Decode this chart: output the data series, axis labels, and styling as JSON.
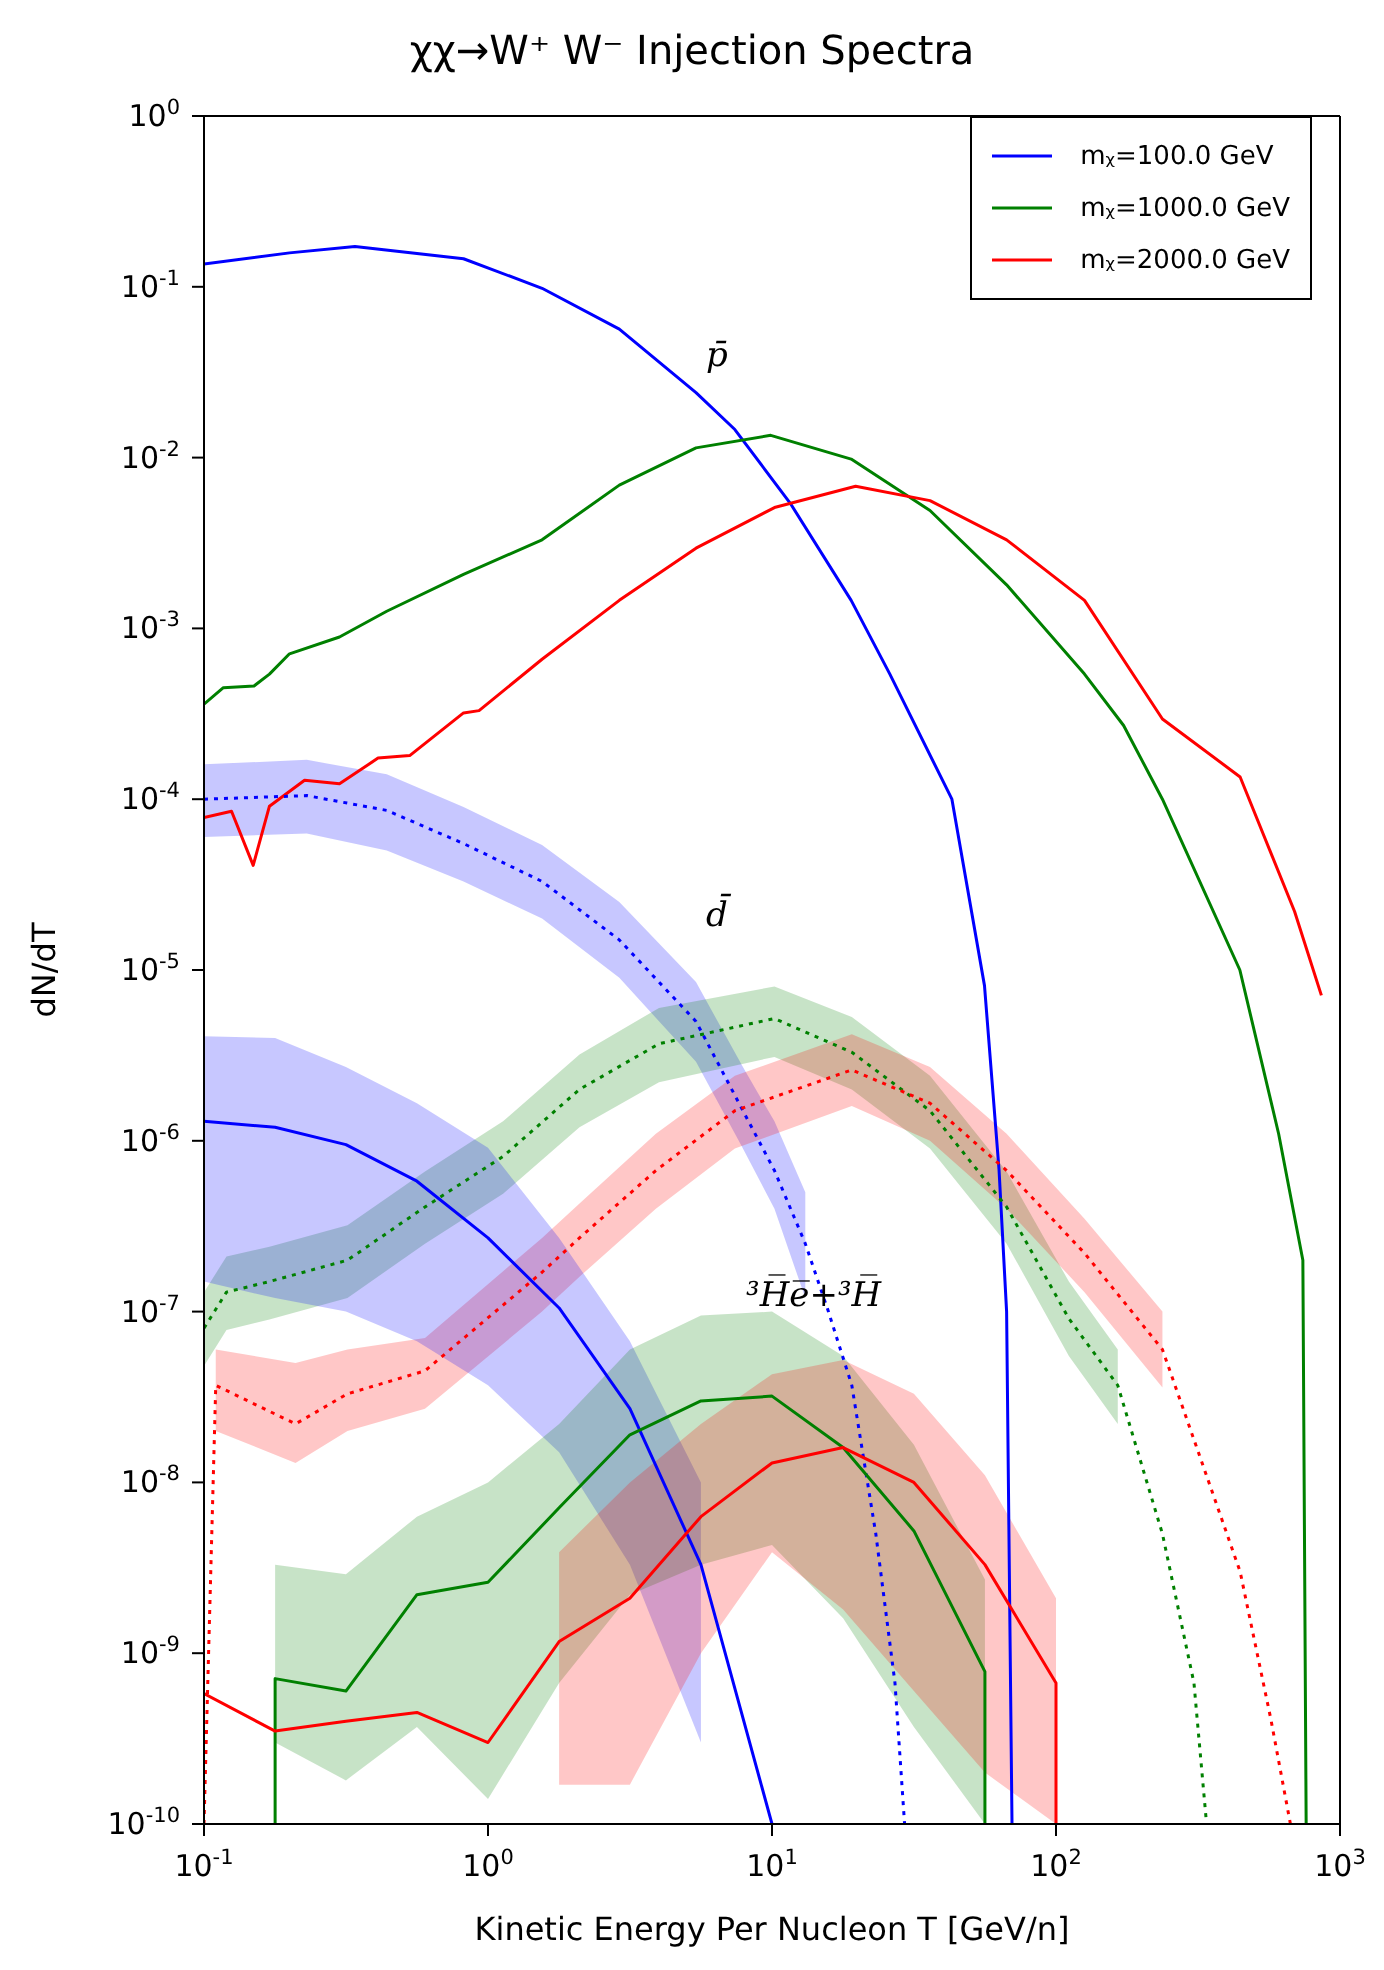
{
  "chart_data": {
    "type": "line",
    "title": "χχ→W⁺ W⁻  Injection Spectra",
    "xlabel": "Kinetic Energy Per Nucleon T [GeV/n]",
    "ylabel": "dN/dT",
    "log": "xy",
    "legend": "top right",
    "xlim": [
      0.1,
      1000
    ],
    "xticks": [
      {
        "value": 0.1,
        "label": "10$^{-1}$"
      },
      {
        "value": 1,
        "label": "10$^{0}$"
      },
      {
        "value": 10,
        "label": "10$^{1}$"
      },
      {
        "value": 100,
        "label": "10$^{2}$"
      },
      {
        "value": 1000,
        "label": "10$^{3}$"
      }
    ],
    "ylim": [
      1e-10,
      1
    ],
    "yticks": [
      {
        "value": 1e-10,
        "label": "10$^{-10}$"
      },
      {
        "value": 1e-09,
        "label": "10$^{-9}$"
      },
      {
        "value": 1e-08,
        "label": "10$^{-8}$"
      },
      {
        "value": 1e-07,
        "label": "10$^{-7}$"
      },
      {
        "value": 1e-06,
        "label": "10$^{-6}$"
      },
      {
        "value": 1e-05,
        "label": "10$^{-5}$"
      },
      {
        "value": 0.0001,
        "label": "10$^{-4}$"
      },
      {
        "value": 0.001,
        "label": "10$^{-3}$"
      },
      {
        "value": 0.01,
        "label": "10$^{-2}$"
      },
      {
        "value": 0.1,
        "label": "10$^{-1}$"
      },
      {
        "value": 1,
        "label": "10$^{0}$"
      }
    ],
    "annotations": [
      "p̄",
      "d̄",
      "³H̅e̅+³H̅"
    ],
    "series": [
      {
        "name": "mᵪ=100.0 GeV",
        "color": "#0000ff",
        "line_style": "solid",
        "x": [
          0.1,
          0.2,
          0.34,
          0.82,
          1.55,
          2.9,
          5.4,
          7.4,
          11.6,
          19,
          26,
          43,
          56,
          63,
          67,
          70
        ],
        "values": [
          0.136,
          0.158,
          0.172,
          0.146,
          0.098,
          0.0565,
          0.024,
          0.0146,
          0.0054,
          0.00146,
          0.00054,
          0.0001,
          8.1e-06,
          6.8e-07,
          1e-07,
          1e-10
        ]
      },
      {
        "name": "mᵪ=1000.0 GeV",
        "color": "#008000",
        "line_style": "solid",
        "x": [
          0.1,
          0.117,
          0.15,
          0.17,
          0.2,
          0.3,
          0.44,
          0.82,
          1.55,
          2.9,
          5.4,
          9.9,
          19,
          36,
          67,
          126,
          173,
          237,
          444,
          608,
          740,
          760
        ],
        "values": [
          0.00036,
          0.00045,
          0.00046,
          0.00054,
          0.00071,
          0.00089,
          0.00126,
          0.00207,
          0.0033,
          0.0069,
          0.0114,
          0.0135,
          0.0098,
          0.0049,
          0.0018,
          0.00054,
          0.00027,
          0.0001,
          1e-05,
          1.1e-06,
          2e-07,
          1e-10
        ]
      },
      {
        "name": "mᵪ=2000.0 GeV",
        "color": "#ff0000",
        "line_style": "solid",
        "x": [
          0.1,
          0.125,
          0.149,
          0.17,
          0.226,
          0.3,
          0.41,
          0.53,
          0.82,
          0.93,
          1.55,
          2.9,
          5.4,
          10.2,
          19.7,
          36,
          67,
          126,
          237,
          445,
          692,
          860
        ],
        "values": [
          7.8e-05,
          8.5e-05,
          4.1e-05,
          9.1e-05,
          0.000129,
          0.000123,
          0.000174,
          0.00018,
          0.00032,
          0.00033,
          0.00066,
          0.00146,
          0.00295,
          0.0051,
          0.0068,
          0.0056,
          0.0033,
          0.00146,
          0.000295,
          0.000135,
          2.2e-05,
          7.1e-06
        ]
      },
      {
        "color": "#0000ff",
        "line_style": "dotted",
        "x": [
          0.1,
          0.23,
          0.44,
          0.82,
          1.55,
          2.9,
          5.4,
          7.9,
          10.2,
          13.1,
          15.8,
          19.1,
          23.2,
          27.1,
          29.3
        ],
        "values": [
          0.0001,
          0.000105,
          8.6e-05,
          5.5e-05,
          3.3e-05,
          1.5e-05,
          5e-06,
          1.5e-06,
          6.7e-07,
          2.5e-07,
          1e-07,
          3.7e-08,
          5e-09,
          6.7e-10,
          1e-10
        ],
        "upper": [
          0.00016,
          0.00017,
          0.00014,
          9e-05,
          5.4e-05,
          2.5e-05,
          8.5e-06,
          2.7e-06,
          1.3e-06,
          5e-07,
          null,
          null,
          null,
          null,
          null
        ],
        "lower": [
          6e-05,
          6.3e-05,
          5e-05,
          3.3e-05,
          2e-05,
          9e-06,
          2.9e-06,
          9e-07,
          4e-07,
          1.2e-07,
          null,
          null,
          null,
          null,
          null
        ]
      },
      {
        "color": "#008000",
        "line_style": "dotted",
        "x": [
          0.1,
          0.12,
          0.17,
          0.32,
          0.6,
          1.13,
          2.1,
          4,
          10.2,
          19.1,
          36,
          67,
          111,
          165,
          237,
          306,
          339
        ],
        "values": [
          8e-08,
          1.3e-07,
          1.5e-07,
          2e-07,
          4.1e-07,
          8.1e-07,
          2e-06,
          3.7e-06,
          5.2e-06,
          3.3e-06,
          1.5e-06,
          4.1e-07,
          9.1e-08,
          3.7e-08,
          5e-09,
          6.7e-10,
          1e-10
        ],
        "upper": [
          1.3e-07,
          2.1e-07,
          2.4e-07,
          3.2e-07,
          6.6e-07,
          1.3e-06,
          3.2e-06,
          6e-06,
          8e-06,
          5.3e-06,
          2.4e-06,
          6.6e-07,
          1.5e-07,
          6e-08,
          null,
          null,
          null
        ],
        "lower": [
          4.8e-08,
          7.8e-08,
          9e-08,
          1.2e-07,
          2.5e-07,
          4.9e-07,
          1.2e-06,
          2.2e-06,
          3.1e-06,
          2e-06,
          9e-07,
          2.5e-07,
          5.5e-08,
          2.2e-08,
          null,
          null,
          null
        ]
      },
      {
        "color": "#ff0000",
        "line_style": "dotted",
        "x": [
          0.1,
          0.11,
          0.21,
          0.32,
          0.6,
          1.55,
          2.1,
          3.9,
          7.4,
          19.1,
          36,
          67,
          126,
          237,
          445,
          571,
          669
        ],
        "values": [
          1e-10,
          3.7e-08,
          2.2e-08,
          3.3e-08,
          4.5e-08,
          1.7e-07,
          2.7e-07,
          6.7e-07,
          1.5e-06,
          2.6e-06,
          1.66e-06,
          6.7e-07,
          2.2e-07,
          6e-08,
          3e-09,
          4.1e-10,
          1e-10
        ],
        "upper": [
          null,
          6e-08,
          5e-08,
          6e-08,
          7e-08,
          2.7e-07,
          4.3e-07,
          1.1e-06,
          2.4e-06,
          4.2e-06,
          2.7e-06,
          1.1e-06,
          3.5e-07,
          1e-07,
          null,
          null,
          null
        ],
        "lower": [
          null,
          2e-08,
          1.3e-08,
          2e-08,
          2.7e-08,
          1e-07,
          1.6e-07,
          4e-07,
          9e-07,
          1.6e-06,
          1e-06,
          4e-07,
          1.3e-07,
          3.6e-08,
          null,
          null,
          null
        ]
      },
      {
        "color": "#0000ff",
        "line_style": "solid",
        "x": [
          0.1,
          0.178,
          0.316,
          0.562,
          1,
          1.78,
          3.16,
          5.62,
          10
        ],
        "values": [
          1.3e-06,
          1.2e-06,
          9.5e-07,
          5.8e-07,
          2.7e-07,
          1.05e-07,
          2.7e-08,
          3.3e-09,
          1e-10
        ],
        "upper": [
          4.1e-06,
          4e-06,
          2.7e-06,
          1.66e-06,
          9.1e-07,
          2.7e-07,
          6.7e-08,
          1e-08,
          null
        ],
        "lower": [
          1.5e-07,
          1.2e-07,
          1e-07,
          6.7e-08,
          3.7e-08,
          1.5e-08,
          3.3e-09,
          3e-10,
          null
        ]
      },
      {
        "color": "#008000",
        "line_style": "solid",
        "x": [
          0.178,
          0.178,
          0.316,
          0.562,
          1,
          1.78,
          3.16,
          5.62,
          10,
          17.8,
          31.6,
          56.2,
          56.2
        ],
        "values": [
          1e-10,
          7.1e-10,
          6e-10,
          2.2e-09,
          2.6e-09,
          7.1e-09,
          1.9e-08,
          3e-08,
          3.2e-08,
          1.6e-08,
          5.2e-09,
          7.8e-10,
          1e-10
        ],
        "upper": [
          null,
          3.3e-09,
          2.9e-09,
          6.3e-09,
          1e-08,
          2.2e-08,
          6e-08,
          9.5e-08,
          1e-07,
          5.5e-08,
          1.66e-08,
          2.7e-09,
          null
        ],
        "lower": [
          null,
          3e-10,
          1.8e-10,
          3.7e-10,
          1.4e-10,
          6.7e-10,
          2.2e-09,
          3.3e-09,
          4.3e-09,
          1.6e-09,
          3.7e-10,
          1e-10,
          null
        ]
      },
      {
        "color": "#ff0000",
        "line_style": "solid",
        "x": [
          0.1,
          0.178,
          0.316,
          0.562,
          1,
          1.78,
          3.16,
          5.62,
          10,
          17.8,
          31.6,
          56.2,
          100,
          100
        ],
        "values": [
          5.8e-10,
          3.5e-10,
          4e-10,
          4.5e-10,
          3e-10,
          1.17e-09,
          2.1e-09,
          6.3e-09,
          1.3e-08,
          1.6e-08,
          1e-08,
          3.3e-09,
          6.7e-10,
          1e-10
        ],
        "upper": [
          null,
          null,
          null,
          null,
          null,
          3.9e-09,
          1e-08,
          2.2e-08,
          4.3e-08,
          5.2e-08,
          3.3e-08,
          1.1e-08,
          2.1e-09,
          null
        ],
        "lower": [
          null,
          null,
          null,
          null,
          null,
          1.7e-10,
          1.7e-10,
          1e-09,
          3.9e-09,
          1.8e-09,
          6e-10,
          2e-10,
          1e-10,
          null
        ]
      }
    ]
  }
}
